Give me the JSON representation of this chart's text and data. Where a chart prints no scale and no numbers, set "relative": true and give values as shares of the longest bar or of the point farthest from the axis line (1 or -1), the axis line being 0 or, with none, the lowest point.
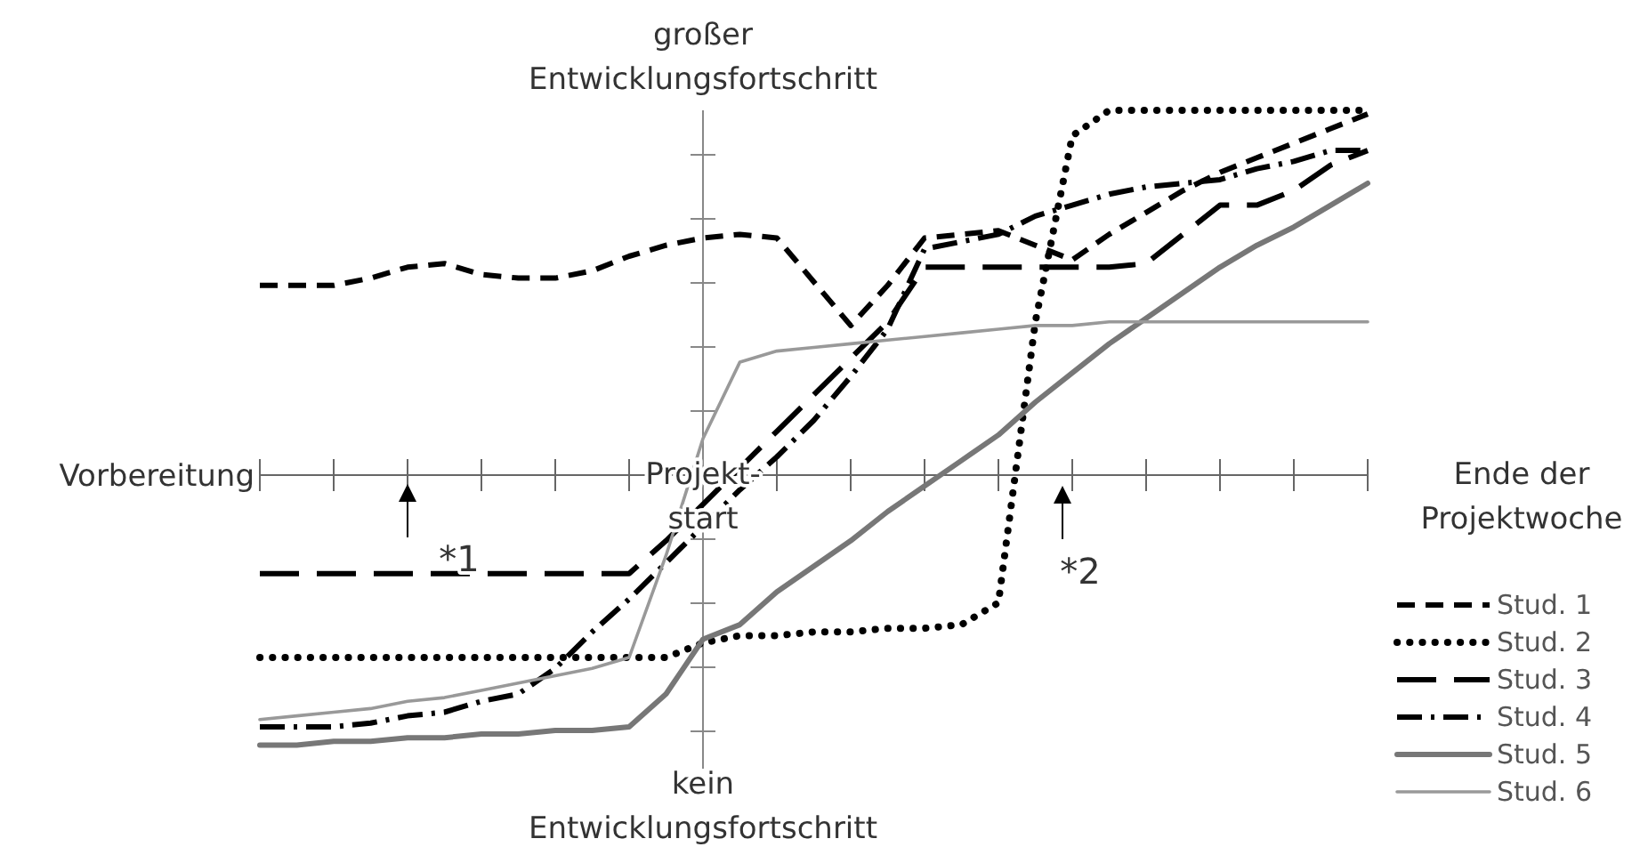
{
  "chart_data": {
    "type": "line",
    "relative": true,
    "categories": [
      null,
      null,
      null,
      null,
      null,
      null,
      null,
      null,
      null,
      null,
      null,
      null,
      null,
      null,
      null,
      null,
      null,
      null,
      null,
      null,
      null,
      null,
      null,
      null,
      null,
      null,
      null,
      null,
      null,
      null,
      null
    ],
    "series": [
      {
        "name": "Stud. 1",
        "color": "#000000",
        "line_style": "dashed",
        "values": [
          0.52,
          0.52,
          0.52,
          0.54,
          0.57,
          0.58,
          0.55,
          0.54,
          0.54,
          0.56,
          0.6,
          0.63,
          0.65,
          0.66,
          0.65,
          0.53,
          0.41,
          0.52,
          0.65,
          0.66,
          0.67,
          0.63,
          0.59,
          0.66,
          0.72,
          0.78,
          0.83,
          0.87,
          0.91,
          0.95,
          0.99
        ]
      },
      {
        "name": "Stud. 2",
        "color": "#000000",
        "line_style": "dotted",
        "values": [
          -0.5,
          -0.5,
          -0.5,
          -0.5,
          -0.5,
          -0.5,
          -0.5,
          -0.5,
          -0.5,
          -0.5,
          -0.5,
          -0.5,
          -0.46,
          -0.44,
          -0.44,
          -0.43,
          -0.43,
          -0.42,
          -0.42,
          -0.41,
          -0.35,
          0.42,
          0.93,
          1,
          1,
          1,
          1,
          1,
          1,
          1,
          1
        ]
      },
      {
        "name": "Stud. 3",
        "color": "#000000",
        "line_style": "dashed",
        "values": [
          -0.27,
          -0.27,
          -0.27,
          -0.27,
          -0.27,
          -0.27,
          -0.27,
          -0.27,
          -0.27,
          -0.27,
          -0.27,
          -0.18,
          -0.08,
          0.02,
          0.12,
          0.22,
          0.32,
          0.42,
          0.57,
          0.57,
          0.57,
          0.57,
          0.57,
          0.57,
          0.58,
          0.66,
          0.74,
          0.74,
          0.78,
          0.85,
          0.89
        ]
      },
      {
        "name": "Stud. 4",
        "color": "#000000",
        "line_style": "dashed",
        "values": [
          -0.69,
          -0.69,
          -0.69,
          -0.68,
          -0.66,
          -0.65,
          -0.62,
          -0.6,
          -0.53,
          -0.43,
          -0.34,
          -0.24,
          -0.14,
          -0.04,
          0.05,
          0.15,
          0.27,
          0.4,
          0.62,
          0.64,
          0.66,
          0.71,
          0.74,
          0.77,
          0.79,
          0.8,
          0.81,
          0.84,
          0.86,
          0.89,
          0.89
        ]
      },
      {
        "name": "Stud. 5",
        "color": "#777777",
        "line_style": "solid",
        "values": [
          -0.74,
          -0.74,
          -0.73,
          -0.73,
          -0.72,
          -0.72,
          -0.71,
          -0.71,
          -0.7,
          -0.7,
          -0.69,
          -0.6,
          -0.45,
          -0.41,
          -0.32,
          -0.25,
          -0.18,
          -0.1,
          -0.03,
          0.04,
          0.11,
          0.2,
          0.28,
          0.36,
          0.43,
          0.5,
          0.57,
          0.63,
          0.68,
          0.74,
          0.8
        ]
      },
      {
        "name": "Stud. 6",
        "color": "#999999",
        "line_style": "solid",
        "values": [
          -0.67,
          -0.66,
          -0.65,
          -0.64,
          -0.62,
          -0.61,
          -0.59,
          -0.57,
          -0.55,
          -0.53,
          -0.5,
          -0.22,
          0.1,
          0.31,
          0.34,
          0.35,
          0.36,
          0.37,
          0.38,
          0.39,
          0.4,
          0.41,
          0.41,
          0.42,
          0.42,
          0.42,
          0.42,
          0.42,
          0.42,
          0.42,
          0.42
        ]
      }
    ],
    "legend": "bottom right",
    "annotations": [
      "Vorbereitung",
      "Projekt-\nstart",
      "Ende der\nProjektwoche",
      "großer\nEntwicklungsfortschritt",
      "kein\nEntwicklungsfortschritt",
      "*1",
      "*2"
    ]
  }
}
